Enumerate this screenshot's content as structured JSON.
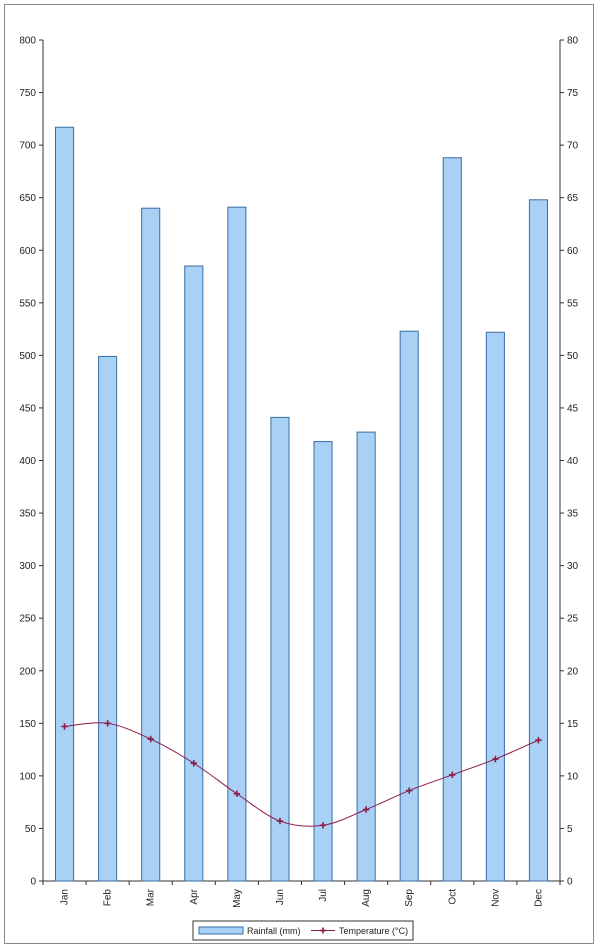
{
  "chart_data": {
    "type": "bar",
    "categories": [
      "Jan",
      "Feb",
      "Mar",
      "Apr",
      "May",
      "Jun",
      "Jul",
      "Aug",
      "Sep",
      "Oct",
      "Nov",
      "Dec"
    ],
    "series": [
      {
        "name": "Rainfall (mm)",
        "type": "bar",
        "axis": "left",
        "color": "#a9d0f5",
        "edge_color": "#3a6ea5",
        "values": [
          717,
          499,
          640,
          585,
          641,
          441,
          418,
          427,
          523,
          688,
          522,
          648
        ]
      },
      {
        "name": "Temperature (°C)",
        "type": "line",
        "axis": "right",
        "color": "#8b1a4a",
        "marker": "plus",
        "values": [
          14.7,
          15.0,
          13.5,
          11.2,
          8.3,
          5.7,
          5.3,
          6.8,
          8.6,
          10.1,
          11.6,
          13.4
        ]
      }
    ],
    "left_axis": {
      "min": 0,
      "max": 800,
      "step": 50
    },
    "right_axis": {
      "min": 0,
      "max": 80,
      "step": 5
    },
    "grid": false,
    "legend_position": "bottom"
  }
}
